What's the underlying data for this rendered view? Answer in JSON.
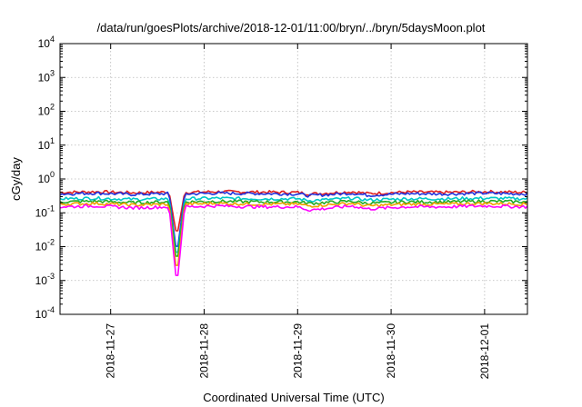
{
  "chart_data": {
    "type": "line",
    "title": "/data/run/goesPlots/archive/2018-12-01/11:00/bryn/../bryn/5daysMoon.plot",
    "xlabel": "Coordinated Universal Time (UTC)",
    "ylabel": "cGy/day",
    "yscale": "log",
    "ylim": [
      0.0001,
      10000
    ],
    "xlim": [
      "2018-11-26T11:00",
      "2018-12-01T11:00"
    ],
    "grid": true,
    "legend": "none",
    "y_ticks": [
      {
        "value": 0.0001,
        "base": "10",
        "exp": "-4"
      },
      {
        "value": 0.001,
        "base": "10",
        "exp": "-3"
      },
      {
        "value": 0.01,
        "base": "10",
        "exp": "-2"
      },
      {
        "value": 0.1,
        "base": "10",
        "exp": "-1"
      },
      {
        "value": 1,
        "base": "10",
        "exp": "0"
      },
      {
        "value": 10,
        "base": "10",
        "exp": "1"
      },
      {
        "value": 100,
        "base": "10",
        "exp": "2"
      },
      {
        "value": 1000,
        "base": "10",
        "exp": "3"
      },
      {
        "value": 10000,
        "base": "10",
        "exp": "4"
      }
    ],
    "x_ticks": [
      {
        "value": "2018-11-27T00:00",
        "label": "2018-11-27"
      },
      {
        "value": "2018-11-28T00:00",
        "label": "2018-11-28"
      },
      {
        "value": "2018-11-29T00:00",
        "label": "2018-11-29"
      },
      {
        "value": "2018-11-30T00:00",
        "label": "2018-11-30"
      },
      {
        "value": "2018-12-01T00:00",
        "label": "2018-12-01"
      }
    ],
    "series": [
      {
        "color": "#e02020",
        "base": 0.42,
        "x": [
          "2018-11-26T11:00",
          "2018-11-26T20:00",
          "2018-11-27T06:00",
          "2018-11-27T15:00",
          "2018-11-27T17:00",
          "2018-11-27T19:00",
          "2018-11-28T03:00",
          "2018-11-28T14:00",
          "2018-11-29T00:00",
          "2018-11-29T03:00",
          "2018-11-29T14:00",
          "2018-11-29T18:00",
          "2018-11-30T04:00",
          "2018-11-30T14:00",
          "2018-12-01T00:00",
          "2018-12-01T11:00"
        ],
        "y": [
          0.4,
          0.42,
          0.39,
          0.41,
          0.02,
          0.4,
          0.42,
          0.41,
          0.4,
          0.36,
          0.42,
          0.37,
          0.41,
          0.4,
          0.42,
          0.4
        ]
      },
      {
        "color": "#2233dd",
        "base": 0.38,
        "x": [
          "2018-11-26T11:00",
          "2018-11-26T20:00",
          "2018-11-27T06:00",
          "2018-11-27T15:00",
          "2018-11-27T17:00",
          "2018-11-27T19:00",
          "2018-11-28T03:00",
          "2018-11-28T14:00",
          "2018-11-29T00:00",
          "2018-11-29T03:00",
          "2018-11-29T14:00",
          "2018-11-29T18:00",
          "2018-11-30T04:00",
          "2018-11-30T14:00",
          "2018-12-01T00:00",
          "2018-12-01T11:00"
        ],
        "y": [
          0.36,
          0.38,
          0.35,
          0.37,
          0.006,
          0.36,
          0.38,
          0.37,
          0.36,
          0.32,
          0.38,
          0.33,
          0.37,
          0.36,
          0.38,
          0.36
        ]
      },
      {
        "color": "#00c8c8",
        "base": 0.26,
        "x": [
          "2018-11-26T11:00",
          "2018-11-26T20:00",
          "2018-11-27T06:00",
          "2018-11-27T15:00",
          "2018-11-27T17:00",
          "2018-11-27T19:00",
          "2018-11-28T03:00",
          "2018-11-28T14:00",
          "2018-11-29T00:00",
          "2018-11-29T03:00",
          "2018-11-29T14:00",
          "2018-11-29T18:00",
          "2018-11-30T04:00",
          "2018-11-30T14:00",
          "2018-12-01T00:00",
          "2018-12-01T11:00"
        ],
        "y": [
          0.26,
          0.27,
          0.25,
          0.26,
          0.004,
          0.26,
          0.27,
          0.26,
          0.26,
          0.23,
          0.27,
          0.24,
          0.26,
          0.26,
          0.27,
          0.26
        ]
      },
      {
        "color": "#22aa22",
        "base": 0.21,
        "x": [
          "2018-11-26T11:00",
          "2018-11-26T20:00",
          "2018-11-27T06:00",
          "2018-11-27T15:00",
          "2018-11-27T17:00",
          "2018-11-27T19:00",
          "2018-11-28T03:00",
          "2018-11-28T14:00",
          "2018-11-29T00:00",
          "2018-11-29T03:00",
          "2018-11-29T14:00",
          "2018-11-29T18:00",
          "2018-11-30T04:00",
          "2018-11-30T14:00",
          "2018-12-01T00:00",
          "2018-12-01T11:00"
        ],
        "y": [
          0.21,
          0.22,
          0.2,
          0.21,
          0.003,
          0.21,
          0.22,
          0.21,
          0.21,
          0.19,
          0.22,
          0.19,
          0.21,
          0.21,
          0.22,
          0.21
        ]
      },
      {
        "color": "#f0a000",
        "base": 0.18,
        "x": [
          "2018-11-26T11:00",
          "2018-11-26T20:00",
          "2018-11-27T06:00",
          "2018-11-27T15:00",
          "2018-11-27T17:00",
          "2018-11-27T19:00",
          "2018-11-28T03:00",
          "2018-11-28T14:00",
          "2018-11-29T00:00",
          "2018-11-29T03:00",
          "2018-11-29T14:00",
          "2018-11-29T18:00",
          "2018-11-30T04:00",
          "2018-11-30T14:00",
          "2018-12-01T00:00",
          "2018-12-01T11:00"
        ],
        "y": [
          0.18,
          0.19,
          0.17,
          0.18,
          0.0015,
          0.18,
          0.19,
          0.18,
          0.18,
          0.16,
          0.19,
          0.16,
          0.18,
          0.18,
          0.19,
          0.18
        ]
      },
      {
        "color": "#ff00ff",
        "base": 0.15,
        "x": [
          "2018-11-26T11:00",
          "2018-11-26T20:00",
          "2018-11-27T06:00",
          "2018-11-27T15:00",
          "2018-11-27T17:00",
          "2018-11-27T19:00",
          "2018-11-28T03:00",
          "2018-11-28T14:00",
          "2018-11-29T00:00",
          "2018-11-29T03:00",
          "2018-11-29T14:00",
          "2018-11-29T18:00",
          "2018-11-30T04:00",
          "2018-11-30T14:00",
          "2018-12-01T00:00",
          "2018-12-01T11:00"
        ],
        "y": [
          0.15,
          0.16,
          0.14,
          0.15,
          0.0007,
          0.15,
          0.16,
          0.15,
          0.15,
          0.12,
          0.16,
          0.13,
          0.15,
          0.15,
          0.16,
          0.15
        ]
      }
    ]
  }
}
